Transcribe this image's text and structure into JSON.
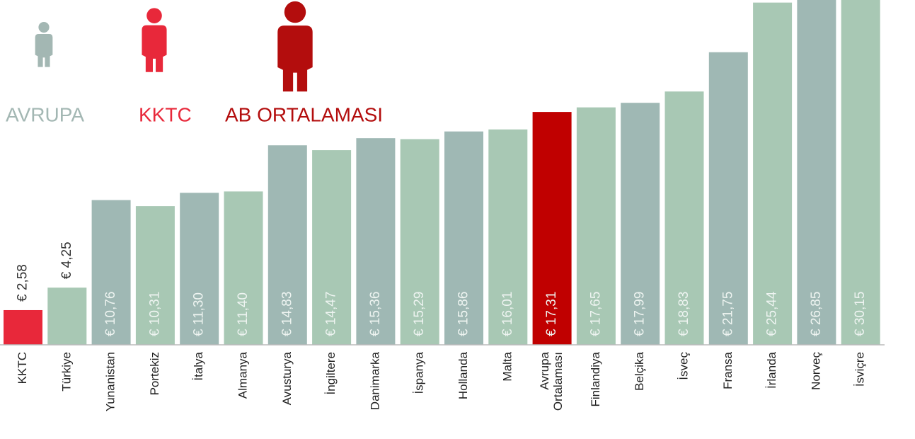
{
  "chart_data": {
    "type": "bar",
    "legend": [
      {
        "label": "AVRUPA",
        "color": "#a3b7b3"
      },
      {
        "label": "KKTC",
        "color": "#e8283a"
      },
      {
        "label": "AB ORTALAMASI",
        "color": "#b30d0d"
      }
    ],
    "categories": [
      "KKTC",
      "Türkiye",
      "Yunanistan",
      "Portekiz",
      "İtalya",
      "Almanya",
      "Avusturya",
      "İngiltere",
      "Danimarka",
      "İspanya",
      "Hollanda",
      "Malta",
      "Avrupa Ortalaması",
      "Finlandiya",
      "Belçika",
      "İsveç",
      "Fransa",
      "İrlanda",
      "Norveç",
      "İsviçre"
    ],
    "values": [
      2.58,
      4.25,
      10.76,
      10.31,
      11.3,
      11.4,
      14.83,
      14.47,
      15.36,
      15.29,
      15.86,
      16.01,
      17.31,
      17.65,
      17.99,
      18.83,
      21.75,
      25.44,
      26.85,
      30.15
    ],
    "value_labels": [
      "€ 2,58",
      "€ 4,25",
      "€ 10,76",
      "€ 10,31",
      "€ 11,30",
      "€ 11,40",
      "€ 14,83",
      "€ 14,47",
      "€ 15,36",
      "€ 15,29",
      "€ 15,86",
      "€ 16,01",
      "€ 17,31",
      "€ 17,65",
      "€ 17,99",
      "€ 18,83",
      "€ 21,75",
      "€ 25,44",
      "€ 26,85",
      "€ 30,15"
    ],
    "colors": [
      "#e8283a",
      "#a8c8b4",
      "#9fb8b4",
      "#a8c8b4",
      "#9fb8b4",
      "#a8c8b4",
      "#9fb8b4",
      "#a8c8b4",
      "#9fb8b4",
      "#a8c8b4",
      "#9fb8b4",
      "#a8c8b4",
      "#c00000",
      "#a8c8b4",
      "#9fb8b4",
      "#a8c8b4",
      "#9fb8b4",
      "#a8c8b4",
      "#9fb8b4",
      "#a8c8b4"
    ]
  }
}
